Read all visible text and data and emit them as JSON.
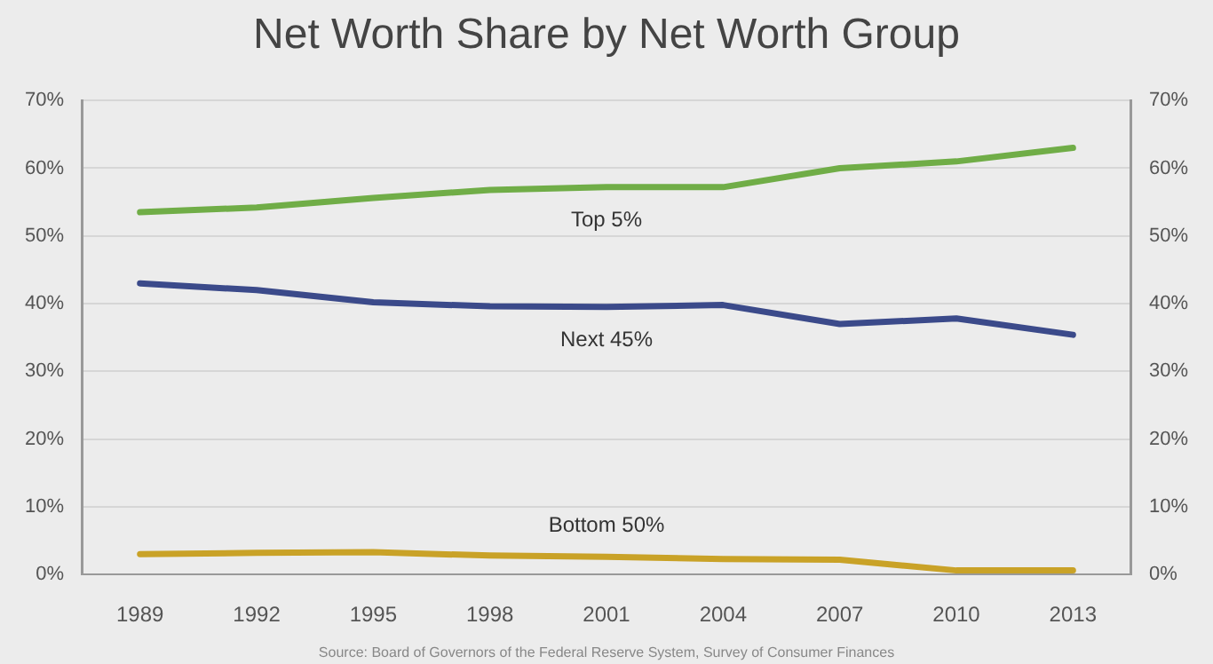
{
  "chart_data": {
    "type": "line",
    "title": "Net Worth Share by Net Worth Group",
    "categories": [
      "1989",
      "1992",
      "1995",
      "1998",
      "2001",
      "2004",
      "2007",
      "2010",
      "2013"
    ],
    "series": [
      {
        "name": "Top 5%",
        "color": "#70ad47",
        "values": [
          53.5,
          54.2,
          55.6,
          56.8,
          57.2,
          57.2,
          60.0,
          61.0,
          63.0
        ]
      },
      {
        "name": "Next 45%",
        "color": "#3b4a8a",
        "values": [
          43.0,
          42.0,
          40.2,
          39.6,
          39.5,
          39.8,
          37.0,
          37.8,
          35.4
        ]
      },
      {
        "name": "Bottom 50%",
        "color": "#c9a227",
        "values": [
          3.0,
          3.2,
          3.3,
          2.8,
          2.6,
          2.3,
          2.2,
          0.6,
          0.6
        ]
      }
    ],
    "ylim": [
      0,
      70
    ],
    "yticks": [
      {
        "value": 0,
        "label": "0%"
      },
      {
        "value": 10,
        "label": "10%"
      },
      {
        "value": 20,
        "label": "20%"
      },
      {
        "value": 30,
        "label": "30%"
      },
      {
        "value": 40,
        "label": "40%"
      },
      {
        "value": 50,
        "label": "50%"
      },
      {
        "value": 60,
        "label": "60%"
      },
      {
        "value": 70,
        "label": "70%"
      }
    ],
    "y2lim": [
      0,
      70
    ],
    "y2ticks": [
      {
        "value": 0,
        "label": "0%"
      },
      {
        "value": 10,
        "label": "10%"
      },
      {
        "value": 20,
        "label": "20%"
      },
      {
        "value": 30,
        "label": "30%"
      },
      {
        "value": 40,
        "label": "40%"
      },
      {
        "value": 50,
        "label": "50%"
      },
      {
        "value": 60,
        "label": "60%"
      },
      {
        "value": 70,
        "label": "70%"
      }
    ],
    "grid": "y",
    "legend": false,
    "marker": "none",
    "line_style": "solid",
    "annotations": [
      "Source: Board of Governors of the Federal Reserve System, Survey of Consumer Finances"
    ]
  }
}
